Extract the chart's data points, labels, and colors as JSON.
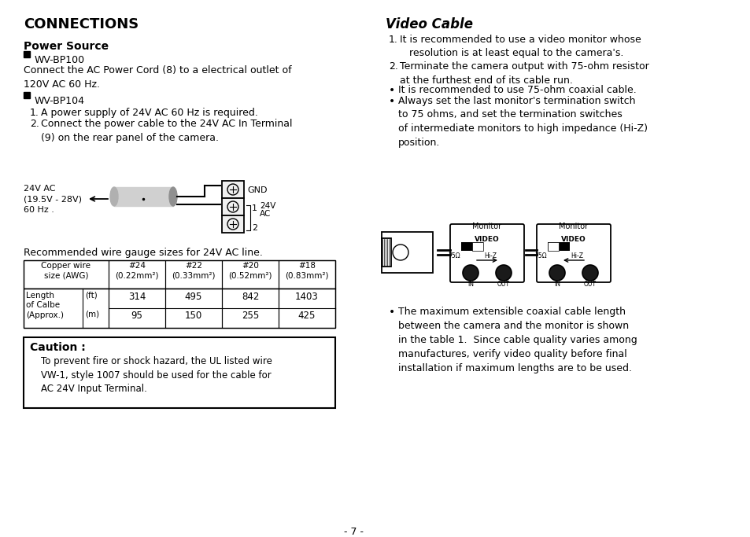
{
  "bg_color": "#ffffff",
  "title": "CONNECTIONS",
  "left_col": {
    "power_source_title": "Power Source",
    "bp100_label": "WV-BP100",
    "bp100_text": "Connect the AC Power Cord (8) to a electrical outlet of\n120V AC 60 Hz.",
    "bp104_label": "WV-BP104",
    "bp104_item1": "A power supply of 24V AC 60 Hz is required.",
    "bp104_item2": "Connect the power cable to the 24V AC In Terminal\n(9) on the rear panel of the camera.",
    "wire_label": "24V AC\n(19.5V - 28V)\n60 Hz .",
    "gauge_intro": "Recommended wire gauge sizes for 24V AC line.",
    "table_col0_hdr": "Copper wire\nsize (AWG)",
    "table_col1_hdr": "#24\n(0.22mm²)",
    "table_col2_hdr": "#22\n(0.33mm²)",
    "table_col3_hdr": "#20\n(0.52mm²)",
    "table_col4_hdr": "#18\n(0.83mm²)",
    "row_label": "Length\nof Calbe\n(Approx.)",
    "row_unit_ft": "(ft)",
    "row_unit_m": "(m)",
    "vals_ft": [
      "314",
      "495",
      "842",
      "1403"
    ],
    "vals_m": [
      "95",
      "150",
      "255",
      "425"
    ],
    "caution_title": "Caution :",
    "caution_text": "To prevent fire or shock hazard, the UL listed wire\nVW-1, style 1007 should be used for the cable for\nAC 24V Input Terminal.",
    "page_num": "- 7 -"
  },
  "right_col": {
    "video_title": "Video Cable",
    "item1": "It is recommended to use a video monitor whose\n   resolution is at least equal to the camera's.",
    "item2": "Terminate the camera output with 75-ohm resistor\nat the furthest end of its cable run.",
    "bullet1": "It is recommended to use 75-ohm coaxial cable.",
    "bullet2": "Always set the last monitor's termination switch\nto 75 ohms, and set the termination switches\nof intermediate monitors to high impedance (Hi-Z)\nposition.",
    "bullet3": "The maximum extensible coaxial cable length\nbetween the camera and the monitor is shown\nin the table 1.  Since cable quality varies among\nmanufactures, verify video quality before final\ninstallation if maximum lengths are to be used."
  }
}
